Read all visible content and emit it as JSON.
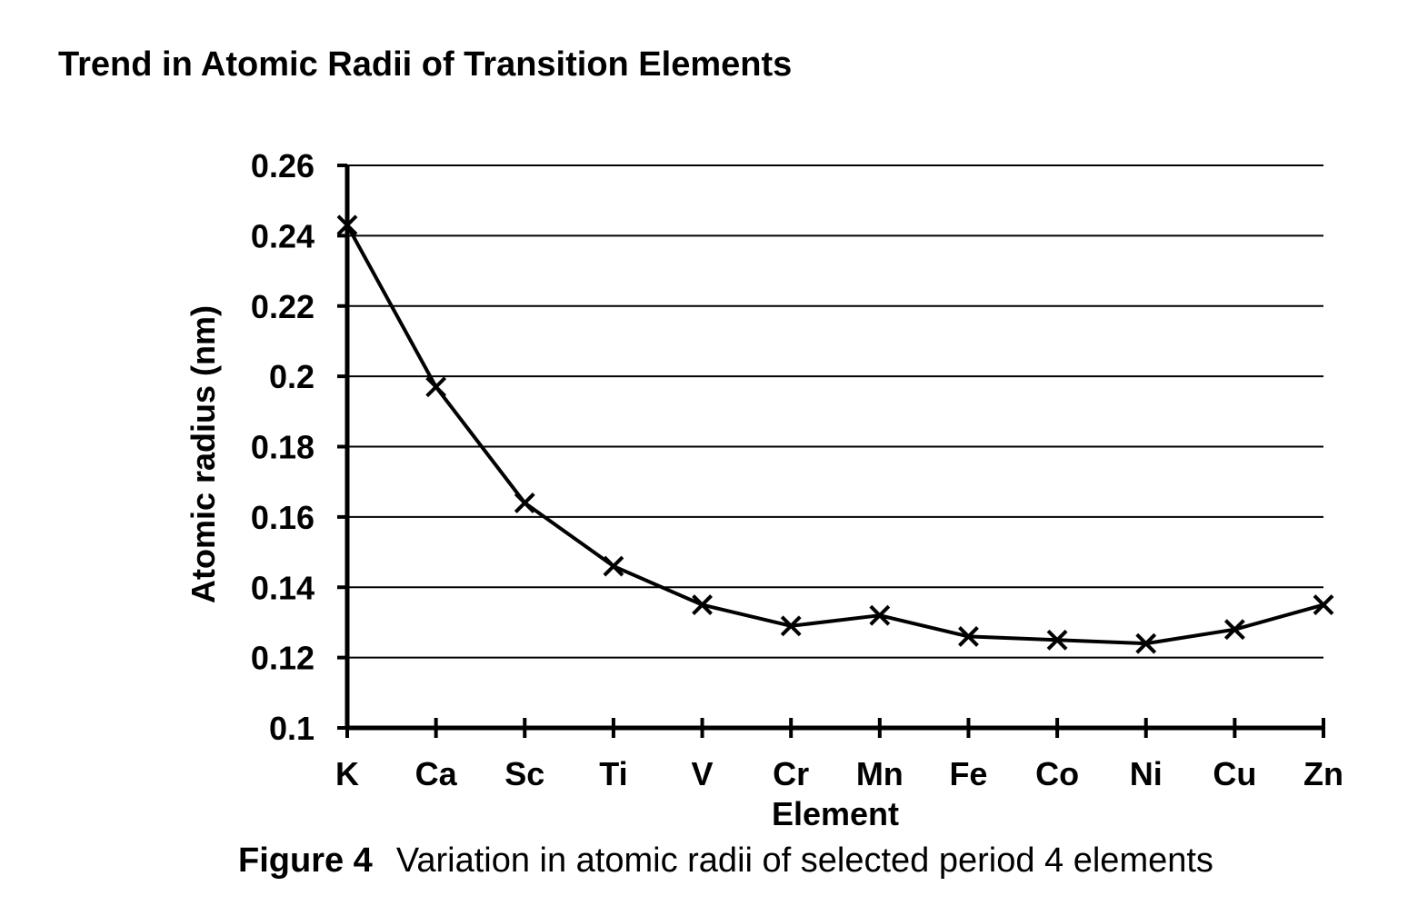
{
  "page": {
    "title": "Trend in Atomic Radii of Transition Elements"
  },
  "caption": {
    "figure_number": "Figure 4",
    "text": "Variation in atomic radii of selected period 4 elements"
  },
  "chart_data": {
    "type": "line",
    "title": "",
    "xlabel": "Element",
    "ylabel": "Atomic radius (nm)",
    "categories": [
      "K",
      "Ca",
      "Sc",
      "Ti",
      "V",
      "Cr",
      "Mn",
      "Fe",
      "Co",
      "Ni",
      "Cu",
      "Zn"
    ],
    "series": [
      {
        "name": "Atomic radius",
        "values": [
          0.243,
          0.197,
          0.164,
          0.146,
          0.135,
          0.129,
          0.132,
          0.126,
          0.125,
          0.124,
          0.128,
          0.135
        ],
        "marker": "x",
        "color": "#000000"
      }
    ],
    "ylim": [
      0.1,
      0.26
    ],
    "yticks": [
      0.1,
      0.12,
      0.14,
      0.16,
      0.18,
      0.2,
      0.22,
      0.24,
      0.26
    ],
    "ytick_labels": [
      "0.1",
      "0.12",
      "0.14",
      "0.16",
      "0.18",
      "0.2",
      "0.22",
      "0.24",
      "0.26"
    ],
    "grid": true,
    "legend": "none"
  }
}
